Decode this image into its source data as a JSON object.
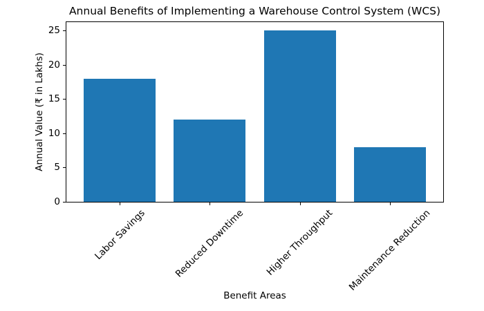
{
  "chart_data": {
    "type": "bar",
    "title": "Annual Benefits of Implementing a Warehouse Control System (WCS)",
    "xlabel": "Benefit Areas",
    "ylabel": "Annual Value (₹ in Lakhs)",
    "categories": [
      "Labor Savings",
      "Reduced Downtime",
      "Higher Throughput",
      "Maintenance Reduction"
    ],
    "values": [
      18,
      12,
      25,
      8
    ],
    "yticks": [
      0,
      5,
      10,
      15,
      20,
      25
    ],
    "ylim": [
      0,
      26.25
    ],
    "xlim": [
      -0.59,
      3.59
    ],
    "bar_width": 0.8,
    "xtick_rotation_deg": 45,
    "grid": false,
    "legend": false,
    "bar_color": "#1f77b4",
    "axis_color": "#000000",
    "text_color": "#000000",
    "background_color": "#ffffff"
  }
}
